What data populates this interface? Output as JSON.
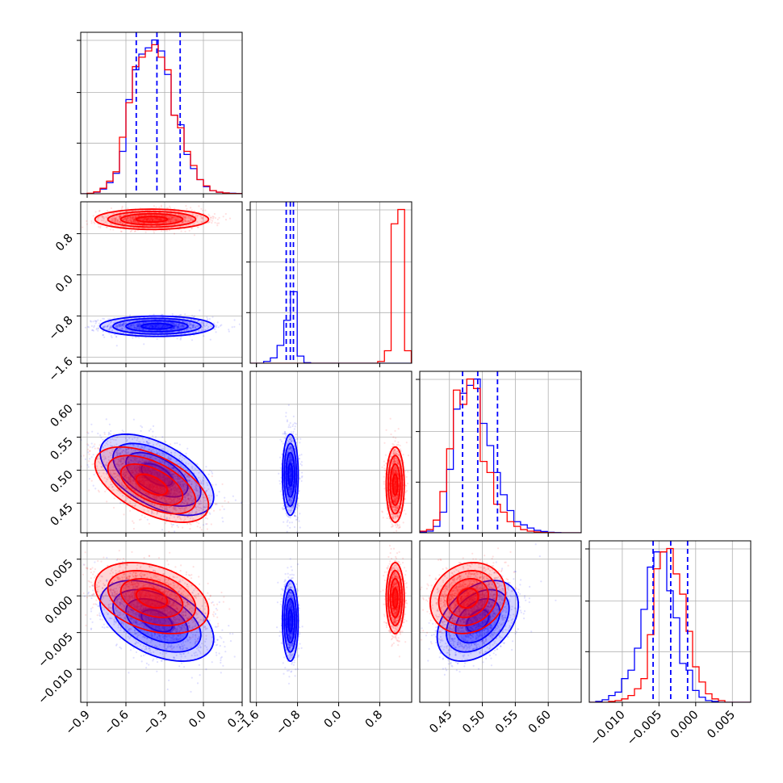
{
  "chart_data": {
    "type": "corner",
    "grid": true,
    "colors": {
      "series_a": "#0000ff",
      "series_b": "#ff0000"
    },
    "parameters": [
      {
        "range": [
          -0.95,
          0.3
        ],
        "ticks": [
          {
            "v": -0.9,
            "label": "−0.9"
          },
          {
            "v": -0.6,
            "label": "−0.6"
          },
          {
            "v": -0.3,
            "label": "−0.3"
          },
          {
            "v": 0.0,
            "label": "0.0"
          },
          {
            "v": 0.3,
            "label": "0.3"
          }
        ]
      },
      {
        "range": [
          -1.72,
          1.42
        ],
        "ticks": [
          {
            "v": -1.6,
            "label": "−1.6"
          },
          {
            "v": -0.8,
            "label": "−0.8"
          },
          {
            "v": 0.0,
            "label": "0.0"
          },
          {
            "v": 0.8,
            "label": "0.8"
          }
        ]
      },
      {
        "range": [
          0.405,
          0.65
        ],
        "ticks": [
          {
            "v": 0.45,
            "label": "0.45"
          },
          {
            "v": 0.5,
            "label": "0.50"
          },
          {
            "v": 0.55,
            "label": "0.55"
          },
          {
            "v": 0.6,
            "label": "0.60"
          }
        ]
      },
      {
        "range": [
          -0.0145,
          0.0075
        ],
        "ticks": [
          {
            "v": -0.01,
            "label": "−0.010"
          },
          {
            "v": -0.005,
            "label": "−0.005"
          },
          {
            "v": 0.0,
            "label": "0.000"
          },
          {
            "v": 0.005,
            "label": "0.005"
          }
        ]
      }
    ],
    "quantiles": [
      [
        -0.52,
        -0.36,
        -0.18
      ],
      [
        -1.02,
        -0.94,
        -0.88
      ],
      [
        0.47,
        0.493,
        0.523
      ],
      [
        -0.0058,
        -0.0034,
        -0.0011
      ]
    ],
    "histograms": [
      {
        "edges": [
          -0.95,
          -0.9,
          -0.85,
          -0.8,
          -0.75,
          -0.7,
          -0.65,
          -0.6,
          -0.55,
          -0.5,
          -0.45,
          -0.4,
          -0.35,
          -0.3,
          -0.25,
          -0.2,
          -0.15,
          -0.1,
          -0.05,
          0.0,
          0.05,
          0.1,
          0.15,
          0.2,
          0.25,
          0.3
        ],
        "series_a": [
          0.0,
          0.002,
          0.01,
          0.03,
          0.07,
          0.13,
          0.27,
          0.6,
          0.79,
          0.89,
          0.93,
          0.98,
          0.91,
          0.76,
          0.5,
          0.44,
          0.25,
          0.16,
          0.09,
          0.045,
          0.02,
          0.01,
          0.005,
          0.003,
          0.001
        ],
        "series_b": [
          0.0,
          0.003,
          0.012,
          0.035,
          0.08,
          0.14,
          0.36,
          0.58,
          0.81,
          0.87,
          0.91,
          0.95,
          0.87,
          0.79,
          0.5,
          0.42,
          0.27,
          0.18,
          0.09,
          0.05,
          0.02,
          0.01,
          0.005,
          0.002,
          0.001
        ]
      },
      {
        "edges": [
          -1.72,
          -1.5895,
          -1.459,
          -1.3285,
          -1.198,
          -1.0675,
          -0.937,
          -0.8065,
          -0.676,
          -0.5455,
          -0.415,
          -0.2845,
          -0.154,
          -0.0235,
          0.107,
          0.2375,
          0.368,
          0.4985,
          0.629,
          0.7595,
          0.89,
          1.0205,
          1.151,
          1.2815,
          1.412
        ],
        "series_a": [
          0.0,
          0.0,
          0.01,
          0.03,
          0.1,
          0.24,
          0.4,
          0.04,
          0.003,
          0.0,
          0.0,
          0.0,
          0.0,
          0.0,
          0.0,
          0.0,
          0.0,
          0.0,
          0.0,
          0.0,
          0.0,
          0.0,
          0.0,
          0.0
        ],
        "series_b": [
          0.0,
          0.0,
          0.0,
          0.0,
          0.0,
          0.0,
          0.0,
          0.0,
          0.0,
          0.0,
          0.0,
          0.0,
          0.0,
          0.0,
          0.0,
          0.0,
          0.0,
          0.0,
          0.0,
          0.01,
          0.07,
          0.78,
          0.86,
          0.07
        ]
      },
      {
        "edges": [
          0.405,
          0.4152,
          0.4254,
          0.4356,
          0.4458,
          0.456,
          0.4662,
          0.4764,
          0.4866,
          0.4968,
          0.507,
          0.5172,
          0.5274,
          0.5376,
          0.5478,
          0.558,
          0.5682,
          0.5784,
          0.5886,
          0.5988,
          0.609,
          0.6192,
          0.6294,
          0.6396,
          0.65
        ],
        "series_a": [
          0.005,
          0.01,
          0.04,
          0.13,
          0.4,
          0.78,
          0.88,
          0.93,
          0.97,
          0.69,
          0.55,
          0.38,
          0.24,
          0.14,
          0.07,
          0.05,
          0.03,
          0.015,
          0.008,
          0.003,
          0.001,
          0.0,
          0.0,
          0.0
        ],
        "series_a_note": "",
        "series_b": [
          0.01,
          0.02,
          0.08,
          0.26,
          0.53,
          0.9,
          0.81,
          0.97,
          0.91,
          0.45,
          0.38,
          0.18,
          0.13,
          0.07,
          0.04,
          0.02,
          0.01,
          0.005,
          0.002,
          0.001,
          0.0,
          0.0,
          0.0,
          0.0
        ]
      },
      {
        "edges": [
          -0.0145,
          -0.01362,
          -0.01274,
          -0.01186,
          -0.01098,
          -0.0101,
          -0.00922,
          -0.00834,
          -0.00746,
          -0.00658,
          -0.0057,
          -0.00482,
          -0.00394,
          -0.00306,
          -0.00218,
          -0.0013,
          -0.00042,
          0.00046,
          0.00134,
          0.00222,
          0.0031,
          0.00398,
          0.00486,
          0.00574,
          0.00662,
          0.0075
        ],
        "series_a": [
          0.0,
          0.005,
          0.015,
          0.04,
          0.06,
          0.14,
          0.19,
          0.32,
          0.55,
          0.8,
          0.89,
          0.89,
          0.66,
          0.5,
          0.23,
          0.19,
          0.07,
          0.03,
          0.01,
          0.005,
          0.0,
          0.0,
          0.0,
          0.0,
          0.0
        ],
        "series_b": [
          0.0,
          0.0,
          0.0,
          0.005,
          0.01,
          0.02,
          0.04,
          0.08,
          0.14,
          0.4,
          0.79,
          0.89,
          0.91,
          0.76,
          0.64,
          0.42,
          0.21,
          0.12,
          0.05,
          0.02,
          0.01,
          0.0,
          0.0,
          0.0,
          0.0
        ]
      }
    ],
    "pair_distributions": [
      {
        "row": 1,
        "col": 0,
        "series_a": {
          "mean": [
            -0.36,
            -1.0
          ],
          "sd": [
            0.2,
            0.09
          ],
          "rho": 0.0
        },
        "series_b": {
          "mean": [
            -0.4,
            1.08
          ],
          "sd": [
            0.2,
            0.09
          ],
          "rho": 0.0
        }
      },
      {
        "row": 2,
        "col": 0,
        "series_a": {
          "mean": [
            -0.36,
            0.493
          ],
          "sd": [
            0.2,
            0.028
          ],
          "rho": -0.55
        },
        "series_b": {
          "mean": [
            -0.4,
            0.478
          ],
          "sd": [
            0.2,
            0.026
          ],
          "rho": -0.55
        }
      },
      {
        "row": 2,
        "col": 1,
        "series_a": {
          "mean": [
            -0.94,
            0.493
          ],
          "sd": [
            0.07,
            0.028
          ],
          "rho": 0.0
        },
        "series_b": {
          "mean": [
            1.1,
            0.478
          ],
          "sd": [
            0.08,
            0.026
          ],
          "rho": 0.0
        }
      },
      {
        "row": 3,
        "col": 0,
        "series_a": {
          "mean": [
            -0.36,
            -0.0034
          ],
          "sd": [
            0.2,
            0.0025
          ],
          "rho": -0.45
        },
        "series_b": {
          "mean": [
            -0.4,
            -0.0003
          ],
          "sd": [
            0.2,
            0.0022
          ],
          "rho": -0.35
        }
      },
      {
        "row": 3,
        "col": 1,
        "series_a": {
          "mean": [
            -0.94,
            -0.0034
          ],
          "sd": [
            0.07,
            0.0025
          ],
          "rho": 0.0
        },
        "series_b": {
          "mean": [
            1.1,
            -0.0003
          ],
          "sd": [
            0.08,
            0.0022
          ],
          "rho": 0.0
        }
      },
      {
        "row": 3,
        "col": 2,
        "series_a": {
          "mean": [
            0.493,
            -0.0034
          ],
          "sd": [
            0.028,
            0.0025
          ],
          "rho": 0.4
        },
        "series_b": {
          "mean": [
            0.478,
            -0.0003
          ],
          "sd": [
            0.026,
            0.0022
          ],
          "rho": 0.15
        }
      }
    ]
  }
}
